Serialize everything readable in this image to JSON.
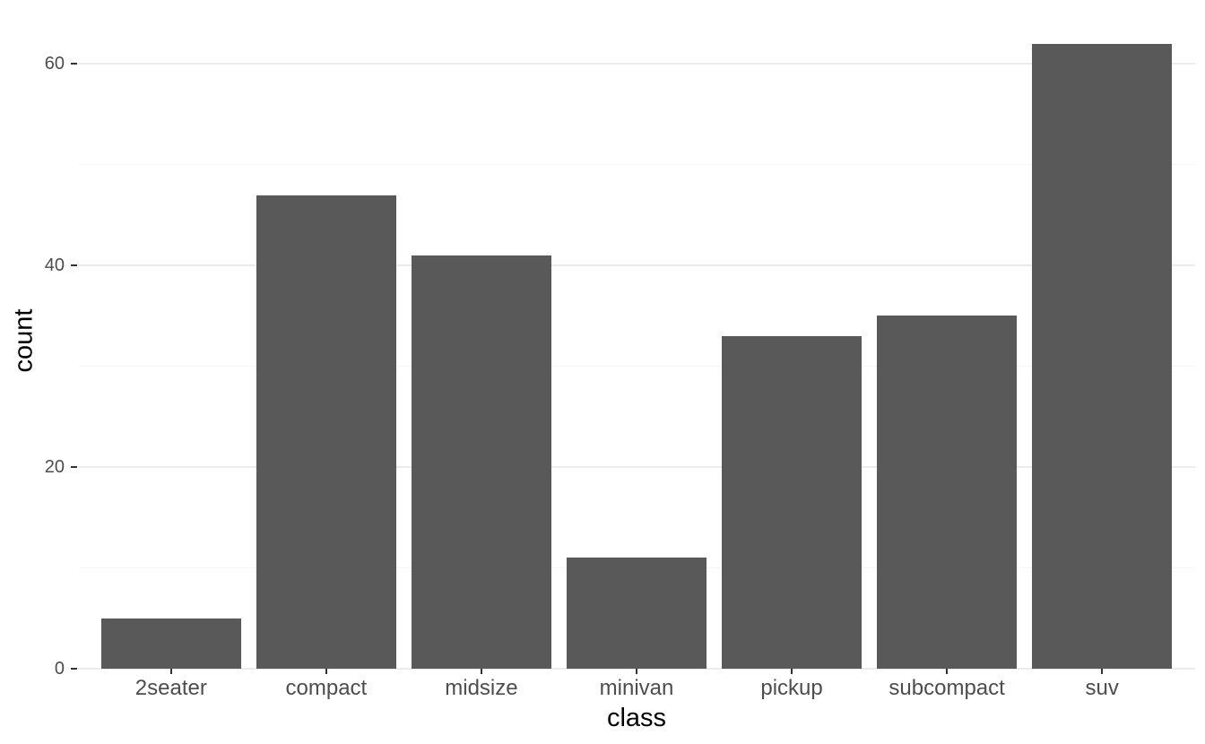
{
  "chart_data": {
    "type": "bar",
    "categories": [
      "2seater",
      "compact",
      "midsize",
      "minivan",
      "pickup",
      "subcompact",
      "suv"
    ],
    "values": [
      5,
      47,
      41,
      11,
      33,
      35,
      62
    ],
    "xlabel": "class",
    "ylabel": "count",
    "ylim": [
      0,
      65.1
    ],
    "yticks": [
      0,
      20,
      40,
      60
    ],
    "yticks_minor": [
      10,
      30,
      50
    ],
    "legend": "none",
    "grid": "horizontal major and minor gridlines on white background",
    "bar_gap_fraction": 0.1,
    "colors": {
      "bar_fill": "#595959",
      "background": "#ffffff",
      "grid_major": "#ebebeb",
      "grid_minor": "#f5f5f5",
      "tick_mark": "#333333",
      "tick_label": "#4d4d4d",
      "axis_title": "#000000"
    }
  }
}
